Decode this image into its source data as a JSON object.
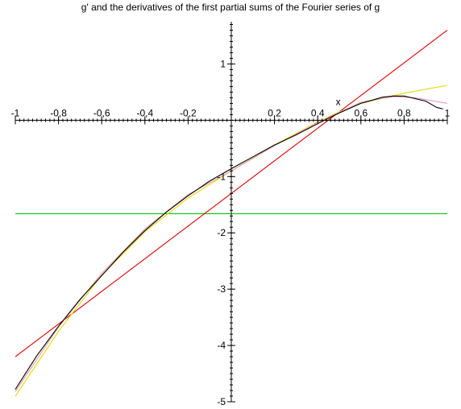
{
  "chart_data": {
    "type": "line",
    "title": "g' and the derivatives of the first partial sums of the Fourier series of g",
    "xlabel": "x",
    "ylabel": "",
    "xlim": [
      -1,
      1
    ],
    "ylim": [
      -5,
      1.75
    ],
    "x_ticks": [
      {
        "value": -1,
        "label": "-1"
      },
      {
        "value": -0.8,
        "label": "-0,8"
      },
      {
        "value": -0.6,
        "label": "-0,6"
      },
      {
        "value": -0.4,
        "label": "-0,4"
      },
      {
        "value": -0.2,
        "label": "-0,2"
      },
      {
        "value": 0.2,
        "label": "0,2"
      },
      {
        "value": 0.4,
        "label": "0,4"
      },
      {
        "value": 0.6,
        "label": "0,6"
      },
      {
        "value": 0.8,
        "label": "0,8"
      },
      {
        "value": 1,
        "label": "1"
      }
    ],
    "y_ticks": [
      {
        "value": 1,
        "label": "1"
      },
      {
        "value": -1,
        "label": "-1"
      },
      {
        "value": -2,
        "label": "-2"
      },
      {
        "value": -3,
        "label": "-3"
      },
      {
        "value": -4,
        "label": "-4"
      },
      {
        "value": -5,
        "label": "-5"
      }
    ],
    "grid": false,
    "legend": "none",
    "series": [
      {
        "color": "#00cc00",
        "x": [
          -1,
          1
        ],
        "y": [
          -1.66,
          -1.66
        ]
      },
      {
        "color": "#dd0000",
        "x": [
          -1,
          1
        ],
        "y": [
          -4.2,
          1.6
        ]
      },
      {
        "color": "#e6d800",
        "x": [
          -1,
          -0.8,
          -0.6,
          -0.4,
          -0.2,
          0,
          0.2,
          0.4,
          0.5,
          0.6,
          0.8,
          1
        ],
        "y": [
          -4.9,
          -3.75,
          -2.75,
          -1.98,
          -1.38,
          -0.9,
          -0.44,
          -0.03,
          0.15,
          0.3,
          0.48,
          0.62
        ]
      },
      {
        "color": "#e89ab0",
        "x": [
          -1,
          -0.8,
          -0.6,
          -0.4,
          -0.2,
          0,
          0.2,
          0.4,
          0.6,
          0.75,
          0.85,
          1
        ],
        "y": [
          -4.82,
          -3.67,
          -2.72,
          -1.93,
          -1.32,
          -0.9,
          -0.45,
          -0.04,
          0.32,
          0.42,
          0.4,
          0.3
        ]
      },
      {
        "color": "#000000",
        "x": [
          -1,
          -0.9,
          -0.8,
          -0.7,
          -0.6,
          -0.5,
          -0.4,
          -0.3,
          -0.2,
          -0.1,
          0,
          0.1,
          0.2,
          0.3,
          0.4,
          0.5,
          0.6,
          0.7,
          0.75,
          0.8,
          0.9,
          0.95,
          0.98
        ],
        "y": [
          -4.78,
          -4.18,
          -3.66,
          -3.18,
          -2.76,
          -2.34,
          -1.96,
          -1.63,
          -1.34,
          -1.08,
          -0.86,
          -0.65,
          -0.44,
          -0.26,
          -0.06,
          0.13,
          0.3,
          0.41,
          0.43,
          0.43,
          0.34,
          0.23,
          0.2
        ]
      }
    ]
  }
}
